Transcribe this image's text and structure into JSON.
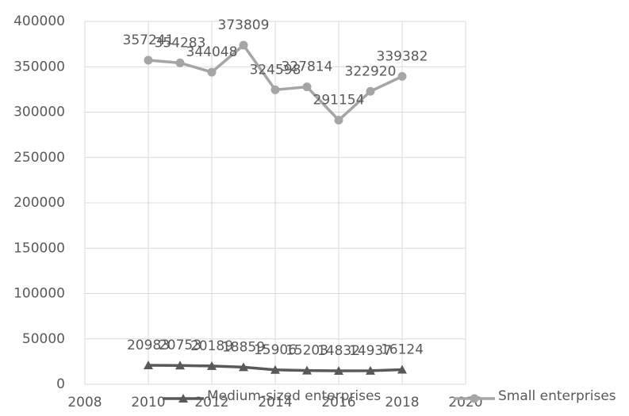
{
  "chart_data": {
    "type": "line",
    "x": [
      2010,
      2011,
      2012,
      2013,
      2014,
      2015,
      2016,
      2017,
      2018
    ],
    "series": [
      {
        "name": "Medium-sized enterprises",
        "color": "#595959",
        "marker": "triangle",
        "values": [
          20983,
          20753,
          20189,
          18859,
          15906,
          15203,
          14832,
          14937,
          16124
        ]
      },
      {
        "name": "Small enterprises",
        "color": "#a5a5a5",
        "marker": "circle",
        "values": [
          357241,
          354283,
          344048,
          373809,
          324598,
          327814,
          291154,
          322920,
          339382
        ]
      }
    ],
    "xlim": [
      2008,
      2020
    ],
    "xticks": [
      2008,
      2010,
      2012,
      2014,
      2016,
      2018,
      2020
    ],
    "ylim": [
      0,
      400000
    ],
    "yticks": [
      0,
      50000,
      100000,
      150000,
      200000,
      250000,
      300000,
      350000,
      400000
    ],
    "grid": true,
    "legend": "bottom"
  }
}
